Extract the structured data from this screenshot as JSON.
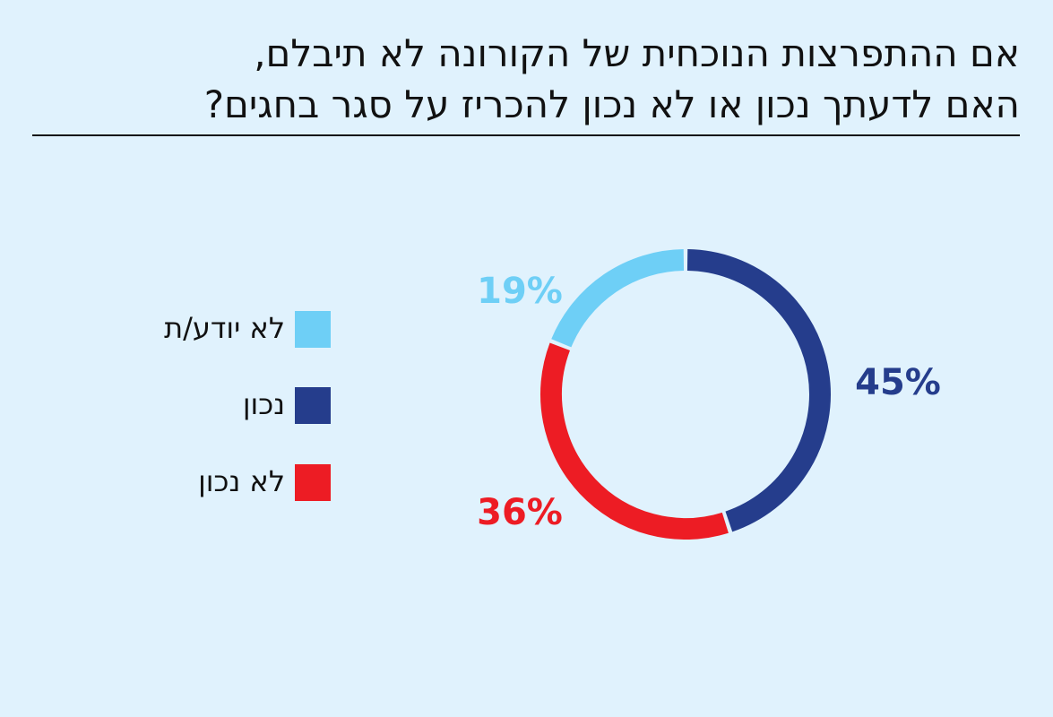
{
  "chart_data": {
    "type": "donut",
    "title": [
      "אם ההתפרצות הנוכחית של הקורונה לא תיבלם,",
      "האם לדעתך נכון או לא נכון להכריז על סגר בחגים?"
    ],
    "categories": [
      "לא יודע/ת",
      "נכון",
      "לא נכון"
    ],
    "values": [
      19,
      45,
      36
    ],
    "value_labels": [
      "19%",
      "45%",
      "36%"
    ],
    "colors": [
      "#6ecff6",
      "#253d8c",
      "#ed1c24"
    ]
  }
}
